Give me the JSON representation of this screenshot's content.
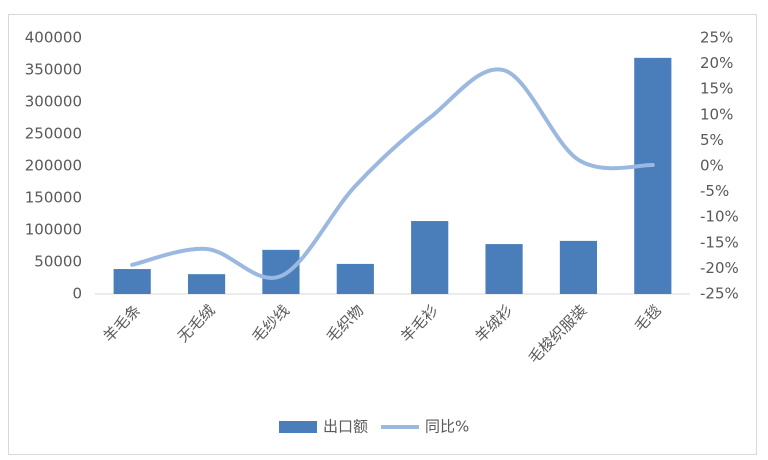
{
  "chart_data": {
    "type": "bar-line",
    "categories": [
      "羊毛条",
      "无毛绒",
      "毛纱线",
      "毛织物",
      "羊毛衫",
      "羊绒衫",
      "毛梭织服装",
      "毛毯"
    ],
    "series": [
      {
        "name": "出口额",
        "type": "bar",
        "color": "#4a7ebb",
        "values": [
          39000,
          31000,
          69000,
          47000,
          114000,
          78000,
          83000,
          369000
        ]
      },
      {
        "name": "同比%",
        "type": "line",
        "axis": "y2",
        "color": "#9bb8e0",
        "values": [
          -19.3,
          -16.2,
          -21.5,
          -3.9,
          9.4,
          18.7,
          1.2,
          0.2
        ]
      }
    ],
    "ylim": [
      0,
      400000
    ],
    "yticks": [
      0,
      50000,
      100000,
      150000,
      200000,
      250000,
      300000,
      350000,
      400000
    ],
    "y2lim": [
      -25,
      25
    ],
    "y2ticks": [
      {
        "value": -25,
        "label": "-25%"
      },
      {
        "value": -20,
        "label": "-20%"
      },
      {
        "value": -15,
        "label": "-15%"
      },
      {
        "value": -10,
        "label": "-10%"
      },
      {
        "value": -5,
        "label": "-5%"
      },
      {
        "value": 0,
        "label": "0%"
      },
      {
        "value": 5,
        "label": "5%"
      },
      {
        "value": 10,
        "label": "10%"
      },
      {
        "value": 15,
        "label": "15%"
      },
      {
        "value": 20,
        "label": "20%"
      },
      {
        "value": 25,
        "label": "25%"
      }
    ],
    "grid": false,
    "legend": "bottom"
  }
}
